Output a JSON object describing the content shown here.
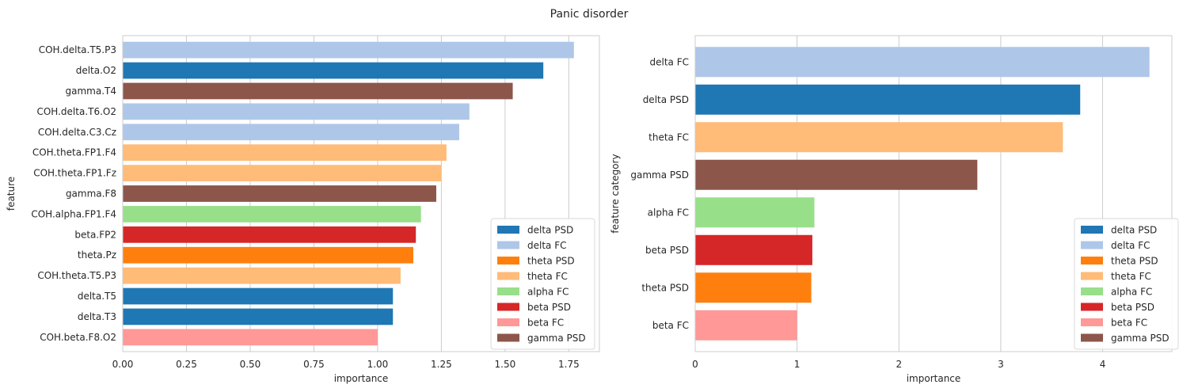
{
  "title": "Panic disorder",
  "colors": {
    "delta PSD": "#1f77b4",
    "delta FC": "#aec7e8",
    "theta PSD": "#ff7f0e",
    "theta FC": "#ffbb78",
    "alpha FC": "#98df8a",
    "beta PSD": "#d62728",
    "beta FC": "#ff9896",
    "gamma PSD": "#8c564b",
    "grid": "#cccccc",
    "axis": "#cccccc"
  },
  "legend_entries": [
    "delta PSD",
    "delta FC",
    "theta PSD",
    "theta FC",
    "alpha FC",
    "beta PSD",
    "beta FC",
    "gamma PSD"
  ],
  "chart_data": [
    {
      "type": "bar",
      "orientation": "horizontal",
      "xlabel": "importance",
      "ylabel": "feature",
      "xlim": [
        0,
        1.87
      ],
      "xticks": [
        "0.00",
        "0.25",
        "0.50",
        "0.75",
        "1.00",
        "1.25",
        "1.50",
        "1.75"
      ],
      "grid": "vertical",
      "legend": "lower-right",
      "categories": [
        "COH.delta.T5.P3",
        "delta.O2",
        "gamma.T4",
        "COH.delta.T6.O2",
        "COH.delta.C3.Cz",
        "COH.theta.FP1.F4",
        "COH.theta.FP1.Fz",
        "gamma.F8",
        "COH.alpha.FP1.F4",
        "beta.FP2",
        "theta.Pz",
        "COH.theta.T5.P3",
        "delta.T5",
        "delta.T3",
        "COH.beta.F8.O2"
      ],
      "values": [
        1.77,
        1.65,
        1.53,
        1.36,
        1.32,
        1.27,
        1.25,
        1.23,
        1.17,
        1.15,
        1.14,
        1.09,
        1.06,
        1.06,
        1.0
      ],
      "groups": [
        "delta FC",
        "delta PSD",
        "gamma PSD",
        "delta FC",
        "delta FC",
        "theta FC",
        "theta FC",
        "gamma PSD",
        "alpha FC",
        "beta PSD",
        "theta PSD",
        "theta FC",
        "delta PSD",
        "delta PSD",
        "beta FC"
      ]
    },
    {
      "type": "bar",
      "orientation": "horizontal",
      "xlabel": "importance",
      "ylabel": "feature category",
      "xlim": [
        0,
        4.68
      ],
      "xticks": [
        "0",
        "1",
        "2",
        "3",
        "4"
      ],
      "grid": "vertical",
      "legend": "lower-right",
      "categories": [
        "delta FC",
        "delta PSD",
        "theta FC",
        "gamma PSD",
        "alpha FC",
        "beta PSD",
        "theta PSD",
        "beta FC"
      ],
      "values": [
        4.46,
        3.78,
        3.61,
        2.77,
        1.17,
        1.15,
        1.14,
        1.0
      ],
      "groups": [
        "delta FC",
        "delta PSD",
        "theta FC",
        "gamma PSD",
        "alpha FC",
        "beta PSD",
        "theta PSD",
        "beta FC"
      ]
    }
  ]
}
